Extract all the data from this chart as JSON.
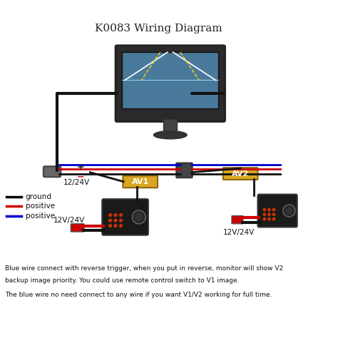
{
  "title": "K0083 Wiring Diagram",
  "title_fontsize": 11,
  "bg_color": "#ffffff",
  "text_line1": "Blue wire connect with reverse trigger, when you put in reverse, monitor will show V2",
  "text_line2": "backup image priority. You could use remote control switch to V1 image.",
  "text_line3": "The blue wire no need connect to any wire if you want V1/V2 working for full time.",
  "legend_items": [
    {
      "label": "ground",
      "color": "#000000"
    },
    {
      "label": "positive",
      "color": "#cc0000"
    },
    {
      "label": "positive",
      "color": "#0000cc"
    }
  ],
  "av1_label": "AV1",
  "av2_label": "AV2",
  "voltage_monitor": "12/24V",
  "voltage_cam1": "12V/24V",
  "voltage_cam2": "12V/24V"
}
